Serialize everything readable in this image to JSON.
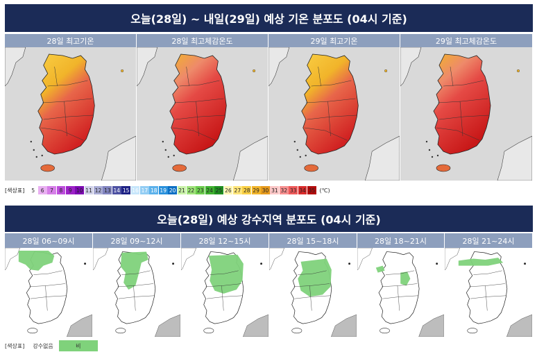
{
  "top_section": {
    "title": "오늘(28일) ~ 내일(29일) 예상 기온 분포도 (04시 기준)",
    "panels": [
      {
        "label": "28일 최고기온",
        "variant": "temp"
      },
      {
        "label": "28일 최고체감온도",
        "variant": "feel"
      },
      {
        "label": "29일 최고기온",
        "variant": "temp"
      },
      {
        "label": "29일 최고체감온도",
        "variant": "feel"
      }
    ]
  },
  "temp_legend": {
    "label": "[색상표]",
    "unit": "(℃)",
    "steps": [
      {
        "v": "5",
        "c": "#ffffff"
      },
      {
        "v": "6",
        "c": "#e9b0f2"
      },
      {
        "v": "7",
        "c": "#d67ee8"
      },
      {
        "v": "8",
        "c": "#bc4ddc"
      },
      {
        "v": "9",
        "c": "#9d22c8"
      },
      {
        "v": "10",
        "c": "#7c09b2"
      },
      {
        "v": "11",
        "c": "#cfd0e8"
      },
      {
        "v": "12",
        "c": "#a9acd5"
      },
      {
        "v": "13",
        "c": "#8184bf"
      },
      {
        "v": "14",
        "c": "#4e52a3"
      },
      {
        "v": "15",
        "c": "#1d2185"
      },
      {
        "v": "16",
        "c": "#c7e6fb"
      },
      {
        "v": "17",
        "c": "#92cdf4"
      },
      {
        "v": "18",
        "c": "#5bb1eb"
      },
      {
        "v": "19",
        "c": "#2a91dc"
      },
      {
        "v": "20",
        "c": "#0b6fc4"
      },
      {
        "v": "21",
        "c": "#c9f2a8"
      },
      {
        "v": "22",
        "c": "#9fe37a"
      },
      {
        "v": "23",
        "c": "#6ccd4e"
      },
      {
        "v": "24",
        "c": "#3fb02f"
      },
      {
        "v": "25",
        "c": "#1f8e20"
      },
      {
        "v": "26",
        "c": "#fff6b3"
      },
      {
        "v": "27",
        "c": "#ffe57a"
      },
      {
        "v": "28",
        "c": "#f9cf45"
      },
      {
        "v": "29",
        "c": "#f1b42a"
      },
      {
        "v": "30",
        "c": "#e69a1d"
      },
      {
        "v": "31",
        "c": "#fbc6c6"
      },
      {
        "v": "32",
        "c": "#f79090"
      },
      {
        "v": "33",
        "c": "#ee5a5a"
      },
      {
        "v": "34",
        "c": "#d92b2b"
      },
      {
        "v": "35",
        "c": "#b30d0d"
      }
    ]
  },
  "bottom_section": {
    "title": "오늘(28일) 예상 강수지역 분포도 (04시 기준)",
    "panels": [
      {
        "label": "28일 06~09시",
        "rain": "nw"
      },
      {
        "label": "28일 09~12시",
        "rain": "west"
      },
      {
        "label": "28일 12~15시",
        "rain": "wide"
      },
      {
        "label": "28일 15~18시",
        "rain": "central"
      },
      {
        "label": "28일 18~21시",
        "rain": "scatter"
      },
      {
        "label": "28일 21~24시",
        "rain": "north"
      }
    ]
  },
  "rain_legend": {
    "label": "[색상표]",
    "no_rain": "강수없음",
    "rain": "비"
  },
  "colors": {
    "banner": "#1b2b57",
    "panel_header": "#8d9fbd",
    "rain": "#7fd27b",
    "sea_temp": "#d9d9d9",
    "land_rain": "#ffffff"
  }
}
